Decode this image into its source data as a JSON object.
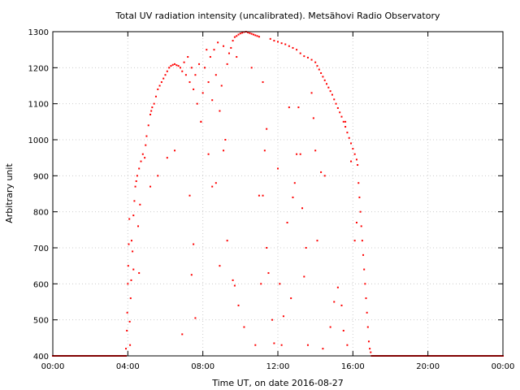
{
  "chart_data": {
    "type": "scatter",
    "title": "Total UV radiation intensity (uncalibrated). Metsähovi Radio Observatory",
    "xlabel": "Time UT, on date 2016-08-27",
    "ylabel": "Arbitrary unit",
    "xlim": [
      0,
      24
    ],
    "ylim": [
      400,
      1300
    ],
    "xticks": [
      {
        "value": 0,
        "label": "00:00"
      },
      {
        "value": 4,
        "label": "04:00"
      },
      {
        "value": 8,
        "label": "08:00"
      },
      {
        "value": 12,
        "label": "12:00"
      },
      {
        "value": 16,
        "label": "16:00"
      },
      {
        "value": 20,
        "label": "20:00"
      },
      {
        "value": 24,
        "label": "00:00"
      }
    ],
    "yticks": [
      400,
      500,
      600,
      700,
      800,
      900,
      1000,
      1100,
      1200,
      1300
    ],
    "grid": true,
    "series": [
      {
        "color": "#ff0000",
        "points": [
          [
            3.9,
            420
          ],
          [
            3.95,
            470
          ],
          [
            3.97,
            520
          ],
          [
            4.0,
            600
          ],
          [
            4.02,
            650
          ],
          [
            4.05,
            710
          ],
          [
            4.08,
            780
          ],
          [
            4.1,
            495
          ],
          [
            4.12,
            430
          ],
          [
            4.15,
            560
          ],
          [
            4.18,
            610
          ],
          [
            4.2,
            720
          ],
          [
            4.25,
            690
          ],
          [
            4.3,
            790
          ],
          [
            4.35,
            830
          ],
          [
            4.4,
            870
          ],
          [
            4.45,
            885
          ],
          [
            4.5,
            900
          ],
          [
            4.55,
            760
          ],
          [
            4.6,
            920
          ],
          [
            4.65,
            820
          ],
          [
            4.7,
            940
          ],
          [
            4.8,
            960
          ],
          [
            4.9,
            950
          ],
          [
            4.95,
            985
          ],
          [
            5.0,
            1010
          ],
          [
            5.1,
            1040
          ],
          [
            5.2,
            1070
          ],
          [
            5.25,
            1080
          ],
          [
            5.3,
            1090
          ],
          [
            5.4,
            1100
          ],
          [
            5.5,
            1120
          ],
          [
            5.6,
            1140
          ],
          [
            5.7,
            1150
          ],
          [
            5.8,
            1160
          ],
          [
            5.9,
            1170
          ],
          [
            6.0,
            1180
          ],
          [
            6.1,
            1190
          ],
          [
            6.2,
            1200
          ],
          [
            6.3,
            1205
          ],
          [
            6.4,
            1208
          ],
          [
            6.5,
            1210
          ],
          [
            6.6,
            1207
          ],
          [
            6.7,
            1205
          ],
          [
            6.8,
            1200
          ],
          [
            6.9,
            1190
          ],
          [
            7.0,
            1215
          ],
          [
            7.1,
            1180
          ],
          [
            7.2,
            1230
          ],
          [
            7.3,
            1160
          ],
          [
            7.4,
            1200
          ],
          [
            7.5,
            1140
          ],
          [
            7.6,
            1180
          ],
          [
            7.7,
            1100
          ],
          [
            7.8,
            1210
          ],
          [
            7.9,
            1050
          ],
          [
            8.0,
            1130
          ],
          [
            8.1,
            1200
          ],
          [
            8.2,
            1250
          ],
          [
            8.3,
            1160
          ],
          [
            8.4,
            1230
          ],
          [
            8.5,
            1110
          ],
          [
            8.6,
            1250
          ],
          [
            8.7,
            1180
          ],
          [
            8.8,
            1270
          ],
          [
            8.9,
            1080
          ],
          [
            9.0,
            1150
          ],
          [
            9.1,
            1260
          ],
          [
            9.2,
            1000
          ],
          [
            9.3,
            1210
          ],
          [
            9.4,
            1240
          ],
          [
            9.5,
            1255
          ],
          [
            9.6,
            1275
          ],
          [
            9.7,
            1285
          ],
          [
            9.8,
            1288
          ],
          [
            9.9,
            1292
          ],
          [
            10.0,
            1295
          ],
          [
            10.1,
            1297
          ],
          [
            10.2,
            1299
          ],
          [
            10.3,
            1300
          ],
          [
            10.4,
            1298
          ],
          [
            10.5,
            1296
          ],
          [
            10.6,
            1294
          ],
          [
            10.7,
            1292
          ],
          [
            10.8,
            1290
          ],
          [
            10.9,
            1288
          ],
          [
            11.0,
            1286
          ],
          [
            11.2,
            1160
          ],
          [
            11.4,
            1030
          ],
          [
            11.6,
            1280
          ],
          [
            11.8,
            1275
          ],
          [
            12.0,
            1272
          ],
          [
            12.2,
            1268
          ],
          [
            12.4,
            1265
          ],
          [
            12.6,
            1260
          ],
          [
            12.8,
            1255
          ],
          [
            13.0,
            1250
          ],
          [
            13.2,
            1240
          ],
          [
            13.4,
            1232
          ],
          [
            13.6,
            1228
          ],
          [
            13.8,
            1222
          ],
          [
            14.0,
            1215
          ],
          [
            14.1,
            1205
          ],
          [
            14.2,
            1195
          ],
          [
            14.3,
            1185
          ],
          [
            14.4,
            1175
          ],
          [
            14.5,
            1165
          ],
          [
            14.6,
            1155
          ],
          [
            14.7,
            1145
          ],
          [
            14.8,
            1135
          ],
          [
            14.9,
            1125
          ],
          [
            15.0,
            1112
          ],
          [
            15.1,
            1100
          ],
          [
            15.2,
            1088
          ],
          [
            15.3,
            1076
          ],
          [
            15.4,
            1064
          ],
          [
            15.5,
            1050
          ],
          [
            15.6,
            1036
          ],
          [
            15.7,
            1020
          ],
          [
            15.8,
            1005
          ],
          [
            15.9,
            990
          ],
          [
            16.0,
            975
          ],
          [
            16.1,
            960
          ],
          [
            16.2,
            945
          ],
          [
            16.25,
            930
          ],
          [
            16.3,
            880
          ],
          [
            16.35,
            840
          ],
          [
            16.4,
            800
          ],
          [
            16.45,
            760
          ],
          [
            16.5,
            720
          ],
          [
            16.55,
            680
          ],
          [
            16.6,
            640
          ],
          [
            16.65,
            600
          ],
          [
            16.7,
            560
          ],
          [
            16.75,
            520
          ],
          [
            16.8,
            480
          ],
          [
            16.85,
            440
          ],
          [
            16.9,
            420
          ],
          [
            16.95,
            410
          ],
          [
            4.3,
            640
          ],
          [
            4.6,
            630
          ],
          [
            5.2,
            870
          ],
          [
            5.6,
            900
          ],
          [
            6.1,
            950
          ],
          [
            6.5,
            970
          ],
          [
            6.9,
            460
          ],
          [
            7.3,
            845
          ],
          [
            7.4,
            625
          ],
          [
            7.5,
            710
          ],
          [
            7.6,
            505
          ],
          [
            7.9,
            1050
          ],
          [
            8.3,
            960
          ],
          [
            8.5,
            870
          ],
          [
            8.7,
            880
          ],
          [
            8.9,
            650
          ],
          [
            9.1,
            970
          ],
          [
            9.3,
            720
          ],
          [
            9.6,
            610
          ],
          [
            9.7,
            595
          ],
          [
            9.9,
            540
          ],
          [
            10.2,
            480
          ],
          [
            10.8,
            430
          ],
          [
            11.0,
            845
          ],
          [
            11.1,
            600
          ],
          [
            11.2,
            845
          ],
          [
            11.3,
            970
          ],
          [
            11.4,
            700
          ],
          [
            11.5,
            630
          ],
          [
            11.8,
            435
          ],
          [
            12.0,
            920
          ],
          [
            12.1,
            600
          ],
          [
            12.3,
            510
          ],
          [
            12.5,
            770
          ],
          [
            12.6,
            1090
          ],
          [
            12.8,
            840
          ],
          [
            12.9,
            880
          ],
          [
            13.0,
            960
          ],
          [
            13.1,
            1090
          ],
          [
            13.2,
            960
          ],
          [
            13.3,
            810
          ],
          [
            13.4,
            620
          ],
          [
            13.5,
            700
          ],
          [
            13.8,
            1130
          ],
          [
            13.9,
            1060
          ],
          [
            14.0,
            970
          ],
          [
            14.1,
            720
          ],
          [
            14.3,
            910
          ],
          [
            14.5,
            900
          ],
          [
            14.8,
            480
          ],
          [
            15.0,
            550
          ],
          [
            15.2,
            590
          ],
          [
            15.4,
            540
          ],
          [
            15.6,
            1050
          ],
          [
            15.9,
            940
          ],
          [
            16.1,
            720
          ],
          [
            16.2,
            770
          ],
          [
            15.5,
            470
          ],
          [
            15.7,
            430
          ],
          [
            11.7,
            500
          ],
          [
            12.7,
            560
          ],
          [
            13.6,
            430
          ],
          [
            14.4,
            420
          ],
          [
            12.2,
            430
          ],
          [
            10.6,
            1200
          ],
          [
            9.8,
            1230
          ]
        ],
        "baseline": {
          "y": 400,
          "x_ranges": [
            [
              0,
              3.9
            ],
            [
              17.0,
              24
            ]
          ]
        }
      }
    ]
  }
}
